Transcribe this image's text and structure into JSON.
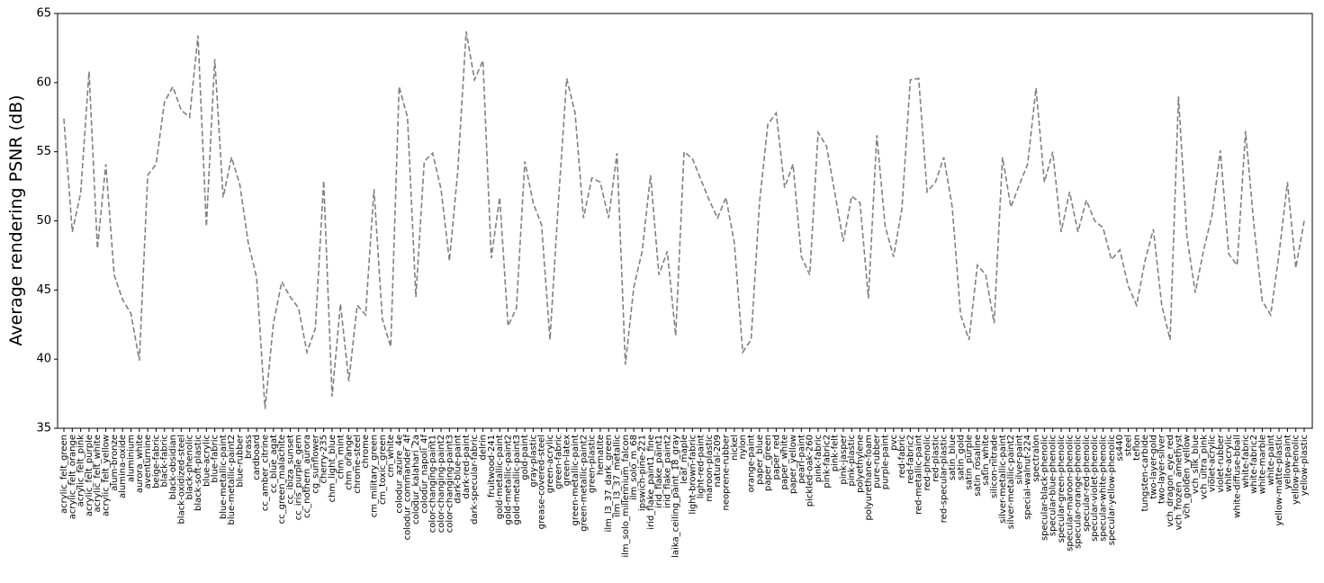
{
  "chart_data": {
    "type": "line",
    "y_label": "Average rendering PSNR (dB)",
    "categories": [
      "acrylic_felt_green",
      "acrylic_felt_orange",
      "acrylic_felt_pink",
      "acrylic_felt_purple",
      "acrylic_felt_white",
      "acrylic_felt_yellow",
      "alum-bronze",
      "alumina-oxide",
      "aluminium",
      "aurora_white",
      "aventurnine",
      "beige-fabric",
      "black-fabric",
      "black-obsidian",
      "black-oxidized-steel",
      "black-phenolic",
      "black-soft-plastic",
      "blue-acrylic",
      "blue-fabric",
      "blue-metallic-paint",
      "blue-metallic-paint2",
      "blue-rubber",
      "brass",
      "cardboard",
      "cc_amber_citrine",
      "cc_blue_agat",
      "cc_green_malachite",
      "cc_ibiza_sunset",
      "cc_iris_purple_gem",
      "cc_nothern_aurora",
      "cg_sunflower",
      "cherry-235",
      "chm_light_blue",
      "chm_mint",
      "chm_orange",
      "chrome-steel",
      "chrome",
      "cm_military_green",
      "cm_toxic_green",
      "cm_white",
      "colodur_azure_4e",
      "colodur_commander_4f",
      "colodur_kalahari_2a",
      "colodur_napoli_4f",
      "color-changing-paint1",
      "color-changing-paint2",
      "color-changing-paint3",
      "dark-blue-paint",
      "dark-red-paint",
      "dark-specular-fabric",
      "delrin",
      "fruitwood-241",
      "gold-metallic-paint",
      "gold-metallic-paint2",
      "gold-metallic-paint3",
      "gold-paint",
      "gray-plastic",
      "grease-covered-steel",
      "green-acrylic",
      "green-fabric",
      "green-latex",
      "green-metallic-paint",
      "green-metallic-paint2",
      "green-plastic",
      "hematite",
      "ilm_l3_37_dark_green",
      "ilm_l3_37_metallic",
      "ilm_solo_millennium_falcon",
      "ilm_solo_m_68",
      "ipswich-pine-221",
      "irid_flake_paint1_fine",
      "irid_flake_paint1",
      "irid_flake_paint2",
      "laika_ceiling_paint_18_gray",
      "leaf_maple",
      "light-brown-fabric",
      "light-red-paint",
      "maroon-plastic",
      "natural-209",
      "neoprene-rubber",
      "nickel",
      "nylon",
      "orange-paint",
      "paper_blue",
      "paper_green",
      "paper_red",
      "paper_white",
      "paper_yellow",
      "pearl-paint",
      "pickled-oak-260",
      "pink-fabric",
      "pink-fabric2",
      "pink-felt",
      "pink-jasper",
      "pink-plastic",
      "polyethylene",
      "polyurethane-foam",
      "pure-rubber",
      "purple-paint",
      "pvc",
      "red-fabric",
      "red-fabric2",
      "red-metallic-paint",
      "red-phenolic",
      "red-plastic",
      "red-specular-plastic",
      "satin_blue",
      "satin_gold",
      "satin_purple",
      "satin_rosaline",
      "satin_white",
      "silicon-nitrade",
      "silver-metallic-paint",
      "silver-metallic-paint2",
      "silver-paint",
      "special-walnut-224",
      "spectralon",
      "specular-black-phenolic",
      "specular-blue-phenolic",
      "specular-green-phenolic",
      "specular-maroon-phenolic",
      "specular-orange-phenolic",
      "specular-red-phenolic",
      "specular-violet-phenolic",
      "specular-white-phenolic",
      "specular-yellow-phenolic",
      "ss440",
      "steel",
      "teflon",
      "tungsten-carbide",
      "two-layer-gold",
      "two-layer-silver",
      "vch_dragon_eye_red",
      "vch_frozen_amethyst",
      "vch_golden_yellow",
      "vch_silk_blue",
      "vch_ultra_pink",
      "violet-acrylic",
      "violet-rubber",
      "white-acrylic",
      "white-diffuse-bball",
      "white-fabric",
      "white-fabric2",
      "white-marble",
      "white-paint",
      "yellow-matte-plastic",
      "yellow-paint",
      "yellow-phenolic",
      "yellow-plastic"
    ],
    "values": [
      57.4,
      49.2,
      52.0,
      60.8,
      48.0,
      54.1,
      46.1,
      44.3,
      43.3,
      39.9,
      53.3,
      54.1,
      58.6,
      59.7,
      58.0,
      57.5,
      63.4,
      49.6,
      61.7,
      51.7,
      54.6,
      52.6,
      48.4,
      45.9,
      36.4,
      42.6,
      45.6,
      44.5,
      43.7,
      40.5,
      42.2,
      52.9,
      37.3,
      44.0,
      38.4,
      43.9,
      43.2,
      52.3,
      42.9,
      40.9,
      59.7,
      57.5,
      44.5,
      54.3,
      54.9,
      52.3,
      47.1,
      53.6,
      63.7,
      60.2,
      61.6,
      47.3,
      51.7,
      42.4,
      43.7,
      54.3,
      51.3,
      49.7,
      41.4,
      51.3,
      60.3,
      57.8,
      50.2,
      53.1,
      52.8,
      50.2,
      54.9,
      39.6,
      45.2,
      47.8,
      53.3,
      46.1,
      47.8,
      41.7,
      55.0,
      54.5,
      53.0,
      51.5,
      50.2,
      51.7,
      48.4,
      40.5,
      41.4,
      51.3,
      57.0,
      57.8,
      52.4,
      54.1,
      47.4,
      46.1,
      56.4,
      55.4,
      52.0,
      48.5,
      51.8,
      51.3,
      44.4,
      56.2,
      49.6,
      47.4,
      50.9,
      60.2,
      60.3,
      52.1,
      52.8,
      54.6,
      51.0,
      43.2,
      41.4,
      46.8,
      46.1,
      42.6,
      54.6,
      51.0,
      52.6,
      54.1,
      59.6,
      52.8,
      55.0,
      49.2,
      52.1,
      49.2,
      51.5,
      50.0,
      49.5,
      47.2,
      47.9,
      45.3,
      43.9,
      47.1,
      49.4,
      43.9,
      41.4,
      59.0,
      48.9,
      44.8,
      47.9,
      50.4,
      55.1,
      47.6,
      46.8,
      56.5,
      49.7,
      44.2,
      43.2,
      47.6,
      52.8,
      46.6,
      50.0
    ],
    "color": "#808080",
    "dashed": true,
    "ylim": [
      35,
      65
    ],
    "yticks": [
      35,
      40,
      45,
      50,
      55,
      60,
      65
    ]
  }
}
